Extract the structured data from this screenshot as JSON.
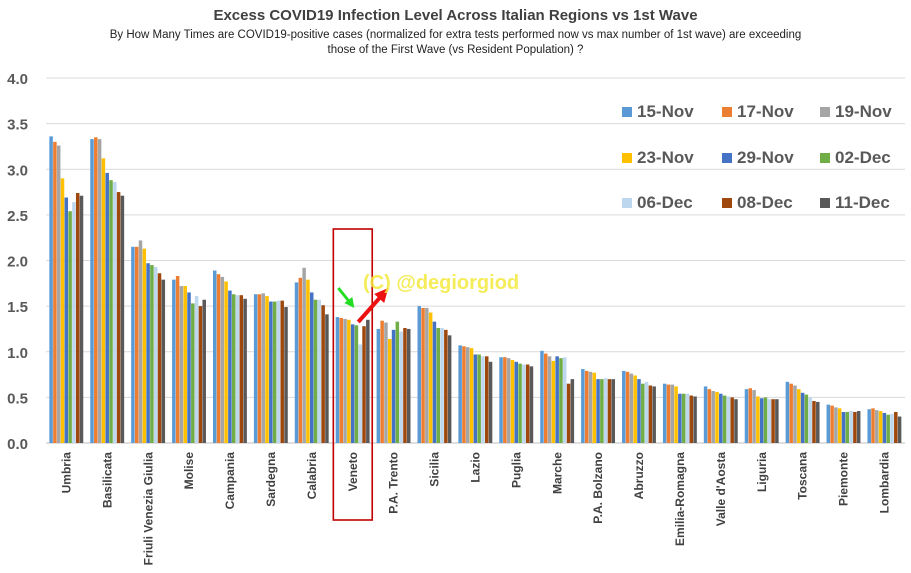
{
  "title": "Excess COVID19 Infection Level Across Italian Regions vs 1st Wave",
  "subtitle_line1": "By How Many Times are  COVID19-positive cases (normalized for extra tests performed now vs  max number of 1st wave) are exceeding",
  "subtitle_line2": "those of the First Wave (vs Resident Population) ?",
  "watermark": "(C) @degiorgiod",
  "highlight_region": "Veneto",
  "chart_data": {
    "type": "bar",
    "ylim": [
      0,
      4.0
    ],
    "yticks": [
      "0.0",
      "0.5",
      "1.0",
      "1.5",
      "2.0",
      "2.5",
      "3.0",
      "3.5",
      "4.0"
    ],
    "grid": true,
    "legend_position": "top-right",
    "categories": [
      "Umbria",
      "Basilicata",
      "Friuli Venezia Giulia",
      "Molise",
      "Campania",
      "Sardegna",
      "Calabria",
      "Veneto",
      "P.A. Trento",
      "Sicilia",
      "Lazio",
      "Puglia",
      "Marche",
      "P.A. Bolzano",
      "Abruzzo",
      "Emilia-Romagna",
      "Valle d'Aosta",
      "Liguria",
      "Toscana",
      "Piemonte",
      "Lombardia"
    ],
    "series": [
      {
        "name": "15-Nov",
        "color": "#5b9bd5",
        "values": [
          3.36,
          3.33,
          2.15,
          1.79,
          1.89,
          1.63,
          1.76,
          1.38,
          1.25,
          1.5,
          1.07,
          0.94,
          1.01,
          0.81,
          0.79,
          0.65,
          0.62,
          0.59,
          0.67,
          0.42,
          0.37
        ]
      },
      {
        "name": "17-Nov",
        "color": "#ed7d31",
        "values": [
          3.3,
          3.35,
          2.15,
          1.83,
          1.85,
          1.63,
          1.81,
          1.37,
          1.34,
          1.48,
          1.06,
          0.94,
          0.98,
          0.79,
          0.78,
          0.64,
          0.59,
          0.6,
          0.65,
          0.41,
          0.38
        ]
      },
      {
        "name": "19-Nov",
        "color": "#a5a5a5",
        "values": [
          3.26,
          3.33,
          2.22,
          1.72,
          1.82,
          1.64,
          1.92,
          1.36,
          1.32,
          1.48,
          1.05,
          0.93,
          0.95,
          0.78,
          0.76,
          0.64,
          0.57,
          0.58,
          0.63,
          0.39,
          0.36
        ]
      },
      {
        "name": "23-Nov",
        "color": "#ffc000",
        "values": [
          2.9,
          3.12,
          2.13,
          1.72,
          1.77,
          1.61,
          1.79,
          1.35,
          1.14,
          1.43,
          1.04,
          0.91,
          0.9,
          0.77,
          0.74,
          0.62,
          0.56,
          0.51,
          0.59,
          0.38,
          0.35
        ]
      },
      {
        "name": "29-Nov",
        "color": "#4472c4",
        "values": [
          2.69,
          2.96,
          1.97,
          1.65,
          1.67,
          1.55,
          1.65,
          1.3,
          1.24,
          1.33,
          0.97,
          0.89,
          0.95,
          0.7,
          0.7,
          0.54,
          0.54,
          0.49,
          0.55,
          0.34,
          0.33
        ]
      },
      {
        "name": "02-Dec",
        "color": "#70ad47",
        "values": [
          2.54,
          2.88,
          1.95,
          1.53,
          1.63,
          1.55,
          1.57,
          1.29,
          1.33,
          1.26,
          0.97,
          0.87,
          0.93,
          0.7,
          0.65,
          0.54,
          0.52,
          0.5,
          0.53,
          0.34,
          0.31
        ]
      },
      {
        "name": "06-Dec",
        "color": "#bdd7ee",
        "values": [
          2.64,
          2.86,
          1.93,
          1.61,
          1.62,
          1.56,
          1.57,
          1.08,
          1.22,
          1.26,
          0.95,
          0.86,
          0.94,
          0.71,
          0.67,
          0.54,
          0.51,
          0.48,
          0.5,
          0.35,
          0.32
        ]
      },
      {
        "name": "08-Dec",
        "color": "#9e480e",
        "values": [
          2.74,
          2.75,
          1.86,
          1.5,
          1.62,
          1.56,
          1.51,
          1.28,
          1.26,
          1.24,
          0.95,
          0.86,
          0.65,
          0.7,
          0.63,
          0.52,
          0.5,
          0.48,
          0.46,
          0.34,
          0.34
        ]
      },
      {
        "name": "11-Dec",
        "color": "#595959",
        "values": [
          2.71,
          2.71,
          1.79,
          1.57,
          1.58,
          1.49,
          1.41,
          1.35,
          1.25,
          1.18,
          0.89,
          0.84,
          0.7,
          0.7,
          0.62,
          0.51,
          0.48,
          0.48,
          0.45,
          0.35,
          0.29
        ]
      }
    ]
  }
}
